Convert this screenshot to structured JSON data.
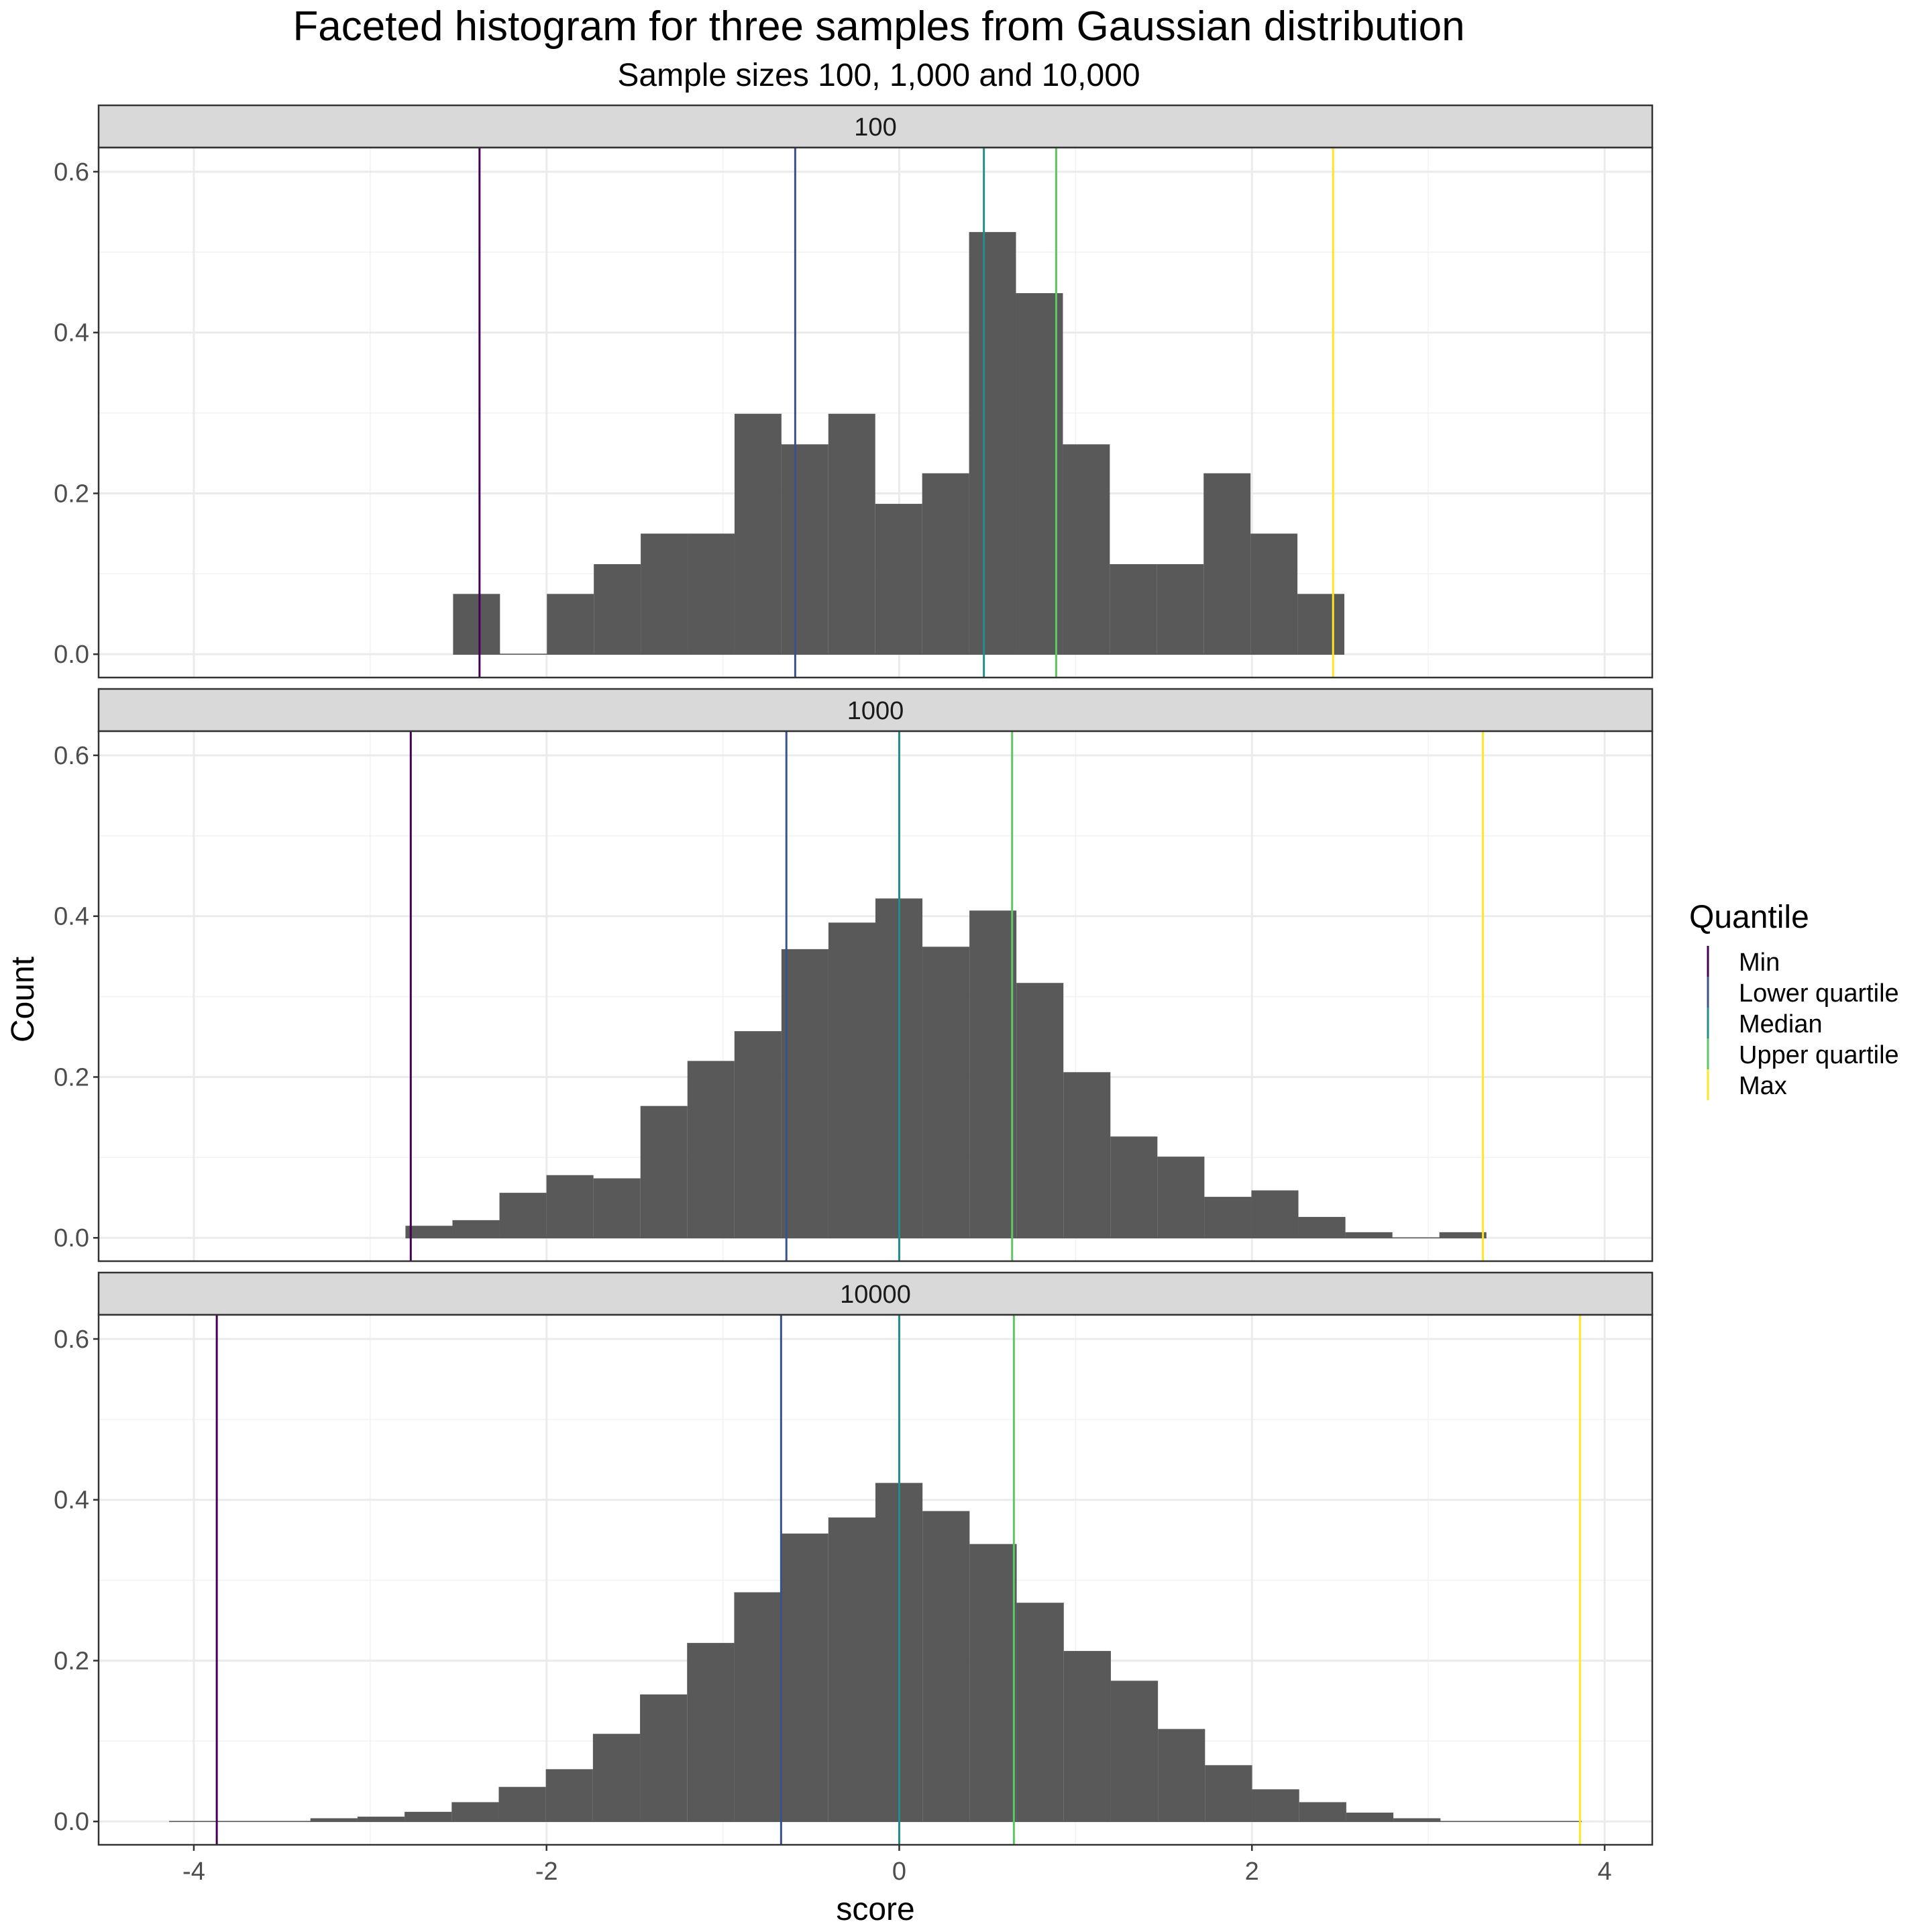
{
  "chart_data": {
    "type": "bar",
    "subtype": "faceted_histogram",
    "title": "Faceted histogram for three samples from Gaussian distribution",
    "subtitle": "Sample sizes 100, 1,000 and 10,000",
    "xlabel": "score",
    "ylabel": "Count",
    "xlim": [
      -4.54,
      4.27
    ],
    "ylim": [
      -0.029,
      0.63
    ],
    "x_ticks": [
      -4,
      -2,
      0,
      2,
      4
    ],
    "x_tick_labels": [
      "-4",
      "-2",
      "0",
      "2",
      "4"
    ],
    "y_ticks": [
      0.0,
      0.2,
      0.4,
      0.6
    ],
    "y_tick_labels": [
      "0.0",
      "0.2",
      "0.4",
      "0.6"
    ],
    "grid": true,
    "bar_color": "#595959",
    "legend": {
      "title": "Quantile",
      "placement": "right",
      "entries": [
        {
          "label": "Min",
          "color": "#440154"
        },
        {
          "label": "Lower quartile",
          "color": "#3B528B"
        },
        {
          "label": "Median",
          "color": "#21908C"
        },
        {
          "label": "Upper quartile",
          "color": "#5DC863"
        },
        {
          "label": "Max",
          "color": "#FDE725"
        }
      ]
    },
    "facets": [
      {
        "label": "100",
        "bin_start": -2.53,
        "bin_width": 0.266,
        "values": [
          0.075,
          0,
          0.075,
          0.112,
          0.15,
          0.15,
          0.299,
          0.261,
          0.299,
          0.187,
          0.225,
          0.525,
          0.449,
          0.261,
          0.112,
          0.112,
          0.225,
          0.15,
          0.075
        ],
        "quantiles": {
          "Min": -2.38,
          "Lower quartile": -0.59,
          "Median": 0.48,
          "Upper quartile": 0.89,
          "Max": 2.46
        }
      },
      {
        "label": "1000",
        "bin_start": -2.8,
        "bin_width": 0.2665,
        "values": [
          0.015,
          0.022,
          0.056,
          0.078,
          0.074,
          0.164,
          0.22,
          0.257,
          0.359,
          0.392,
          0.422,
          0.362,
          0.407,
          0.317,
          0.206,
          0.126,
          0.101,
          0.051,
          0.059,
          0.026,
          0.007,
          0,
          0.007
        ],
        "quantiles": {
          "Min": -2.77,
          "Lower quartile": -0.64,
          "Median": 0.0,
          "Upper quartile": 0.64,
          "Max": 3.31
        }
      },
      {
        "label": "10000",
        "bin_start": -4.14,
        "bin_width": 0.267,
        "values": [
          0.0005,
          0.0005,
          0.0005,
          0.004,
          0.006,
          0.012,
          0.024,
          0.043,
          0.065,
          0.109,
          0.158,
          0.222,
          0.285,
          0.358,
          0.378,
          0.421,
          0.386,
          0.345,
          0.272,
          0.212,
          0.175,
          0.115,
          0.07,
          0.04,
          0.024,
          0.011,
          0.004,
          0.0005,
          0.0005,
          0.0005
        ],
        "quantiles": {
          "Min": -3.87,
          "Lower quartile": -0.67,
          "Median": 0.0,
          "Upper quartile": 0.65,
          "Max": 3.86
        }
      }
    ]
  }
}
